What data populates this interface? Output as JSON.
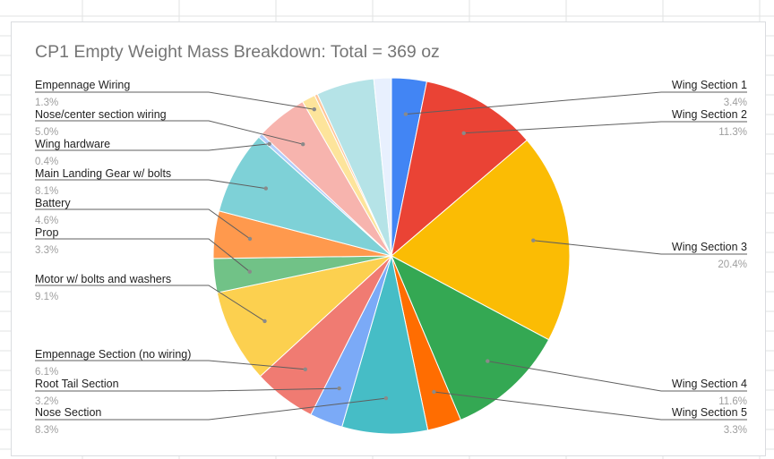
{
  "colors": {
    "grid": "#e2e3e3",
    "leader": "#5f5f5f",
    "slice_border": "#ffffff"
  },
  "chart_data": {
    "type": "pie",
    "title": "CP1 Empty Weight Mass Breakdown: Total = 369 oz",
    "slices": [
      {
        "label": "Wing Section 1",
        "value": 3.4,
        "pct_label": "3.4%",
        "color": "#4285f4"
      },
      {
        "label": "Wing Section 2",
        "value": 11.3,
        "pct_label": "11.3%",
        "color": "#ea4335"
      },
      {
        "label": "Wing Section 3",
        "value": 20.4,
        "pct_label": "20.4%",
        "color": "#fbbc04"
      },
      {
        "label": "Wing Section 4",
        "value": 11.6,
        "pct_label": "11.6%",
        "color": "#34a853"
      },
      {
        "label": "Wing Section 5",
        "value": 3.3,
        "pct_label": "3.3%",
        "color": "#ff6d01"
      },
      {
        "label": "Nose Section",
        "value": 8.3,
        "pct_label": "8.3%",
        "color": "#46bdc6"
      },
      {
        "label": "Root Tail Section",
        "value": 3.2,
        "pct_label": "3.2%",
        "color": "#7baaf7"
      },
      {
        "label": "Empennage Section (no wiring)",
        "value": 6.1,
        "pct_label": "6.1%",
        "color": "#f07b72"
      },
      {
        "label": "Motor w/ bolts and washers",
        "value": 9.1,
        "pct_label": "9.1%",
        "color": "#fcd04f"
      },
      {
        "label": "Prop",
        "value": 3.3,
        "pct_label": "3.3%",
        "color": "#71c287"
      },
      {
        "label": "Battery",
        "value": 4.6,
        "pct_label": "4.6%",
        "color": "#ff994d"
      },
      {
        "label": "Main Landing Gear w/ bolts",
        "value": 8.1,
        "pct_label": "8.1%",
        "color": "#7ed1d7"
      },
      {
        "label": "Wing hardware",
        "value": 0.4,
        "pct_label": "0.4%",
        "color": "#b3cefb"
      },
      {
        "label": "Nose/center section wiring",
        "value": 5.0,
        "pct_label": "5.0%",
        "color": "#f7b4ae"
      },
      {
        "label": "Empennage Wiring",
        "value": 1.3,
        "pct_label": "1.3%",
        "color": "#fde49b"
      },
      {
        "label": "",
        "value": 0.3,
        "pct_label": "",
        "color": "#ffc599"
      },
      {
        "label": "",
        "value": 5.6,
        "pct_label": "",
        "color": "#b5e3e7"
      },
      {
        "label": "",
        "value": 1.7,
        "pct_label": "",
        "color": "#e8f0fe"
      }
    ]
  }
}
